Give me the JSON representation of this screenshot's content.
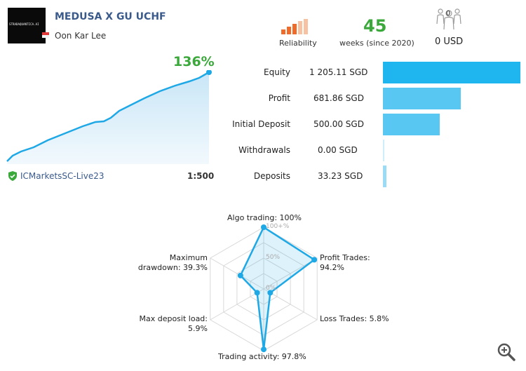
{
  "header": {
    "logo_text": "STRADAQUANTICA.AI",
    "title": "MEDUSA X GU UCHF",
    "author": "Oon Kar Lee",
    "reliability_label": "Reliability",
    "weeks_value": "45",
    "weeks_label": "weeks (since 2020)",
    "subscribers_count": "0",
    "subscription_price": "0 USD"
  },
  "growth": {
    "value": "136%",
    "broker": "ICMarketsSC-Live23",
    "leverage": "1:500"
  },
  "stats": [
    {
      "label": "Equity",
      "value": "1 205.11 SGD",
      "amount": 1205.11
    },
    {
      "label": "Profit",
      "value": "681.86 SGD",
      "amount": 681.86
    },
    {
      "label": "Initial Deposit",
      "value": "500.00 SGD",
      "amount": 500.0
    },
    {
      "label": "Withdrawals",
      "value": "0.00 SGD",
      "amount": 0.0
    },
    {
      "label": "Deposits",
      "value": "33.23 SGD",
      "amount": 33.23
    }
  ],
  "radar": {
    "scale_100": "100+%",
    "scale_50": "50%",
    "scale_0": "0%",
    "axes": [
      {
        "label": "Algo trading: 100%",
        "value": 100
      },
      {
        "label": "Profit Trades:\n94.2%",
        "value": 94.2
      },
      {
        "label": "Loss Trades: 5.8%",
        "value": 5.8
      },
      {
        "label": "Trading activity: 97.8%",
        "value": 97.8
      },
      {
        "label": "Max deposit load:\n5.9%",
        "value": 5.9
      },
      {
        "label": "Maximum\ndrawdown: 39.3%",
        "value": 39.3
      }
    ]
  },
  "colors": {
    "title": "#3a5a8c",
    "green": "#3aa83a",
    "bar": "#2fbef0",
    "radar": "#1fa8e6"
  }
}
